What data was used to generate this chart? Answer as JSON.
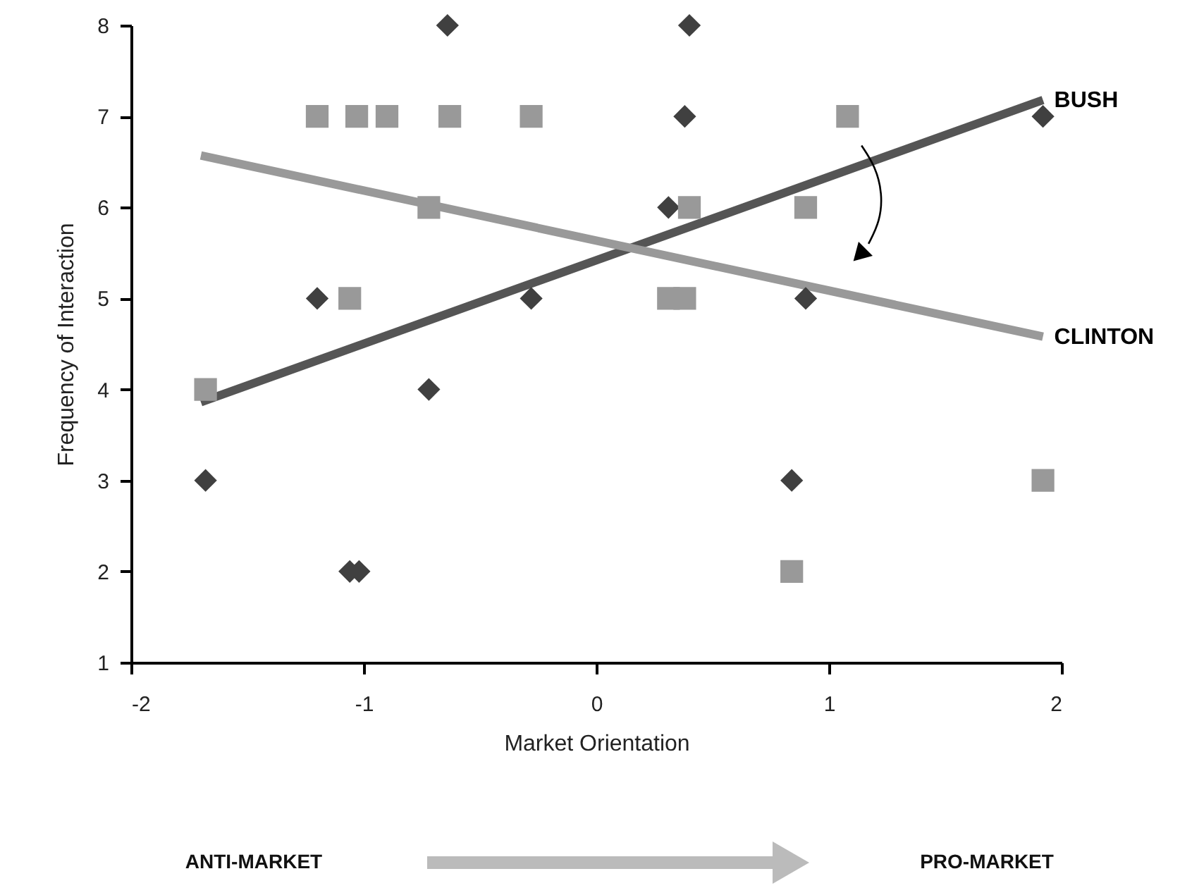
{
  "chart_data": {
    "type": "scatter",
    "xlabel": "Market Orientation",
    "ylabel": "Frequency of Interaction",
    "xlim": [
      -2,
      2
    ],
    "xticks": [
      -2,
      -1,
      0,
      1,
      2
    ],
    "ylim": [
      1,
      8
    ],
    "yticks": [
      1,
      2,
      3,
      4,
      5,
      6,
      7,
      8
    ],
    "grid": false,
    "series": [
      {
        "marker": "diamond",
        "color": "#404040",
        "x": [
          -0.64,
          0.4,
          0.38,
          1.92,
          0.31,
          -1.2,
          -0.28,
          0.9,
          -0.72,
          -1.68,
          0.84,
          -1.06,
          -1.02
        ],
        "values": [
          8,
          8,
          7,
          7,
          6,
          5,
          5,
          5,
          4,
          3,
          3,
          2,
          2
        ]
      },
      {
        "marker": "square",
        "color": "#999999",
        "x": [
          -1.2,
          -1.03,
          -0.9,
          -0.63,
          -0.28,
          1.08,
          -0.72,
          0.4,
          0.9,
          -1.06,
          0.31,
          0.38,
          -1.68,
          1.92,
          0.84
        ],
        "values": [
          7,
          7,
          7,
          7,
          7,
          7,
          6,
          6,
          6,
          5,
          5,
          5,
          4,
          3,
          2
        ]
      },
      {
        "type": "line",
        "name": "BUSH",
        "color": "#555555",
        "x": [
          -1.7,
          1.92
        ],
        "values": [
          3.86,
          7.18
        ]
      },
      {
        "type": "line",
        "name": "CLINTON",
        "color": "#999999",
        "x": [
          -1.7,
          1.92
        ],
        "values": [
          6.57,
          4.58
        ]
      }
    ],
    "annotations": [
      "ANTI-MARKET",
      "PRO-MARKET"
    ]
  }
}
